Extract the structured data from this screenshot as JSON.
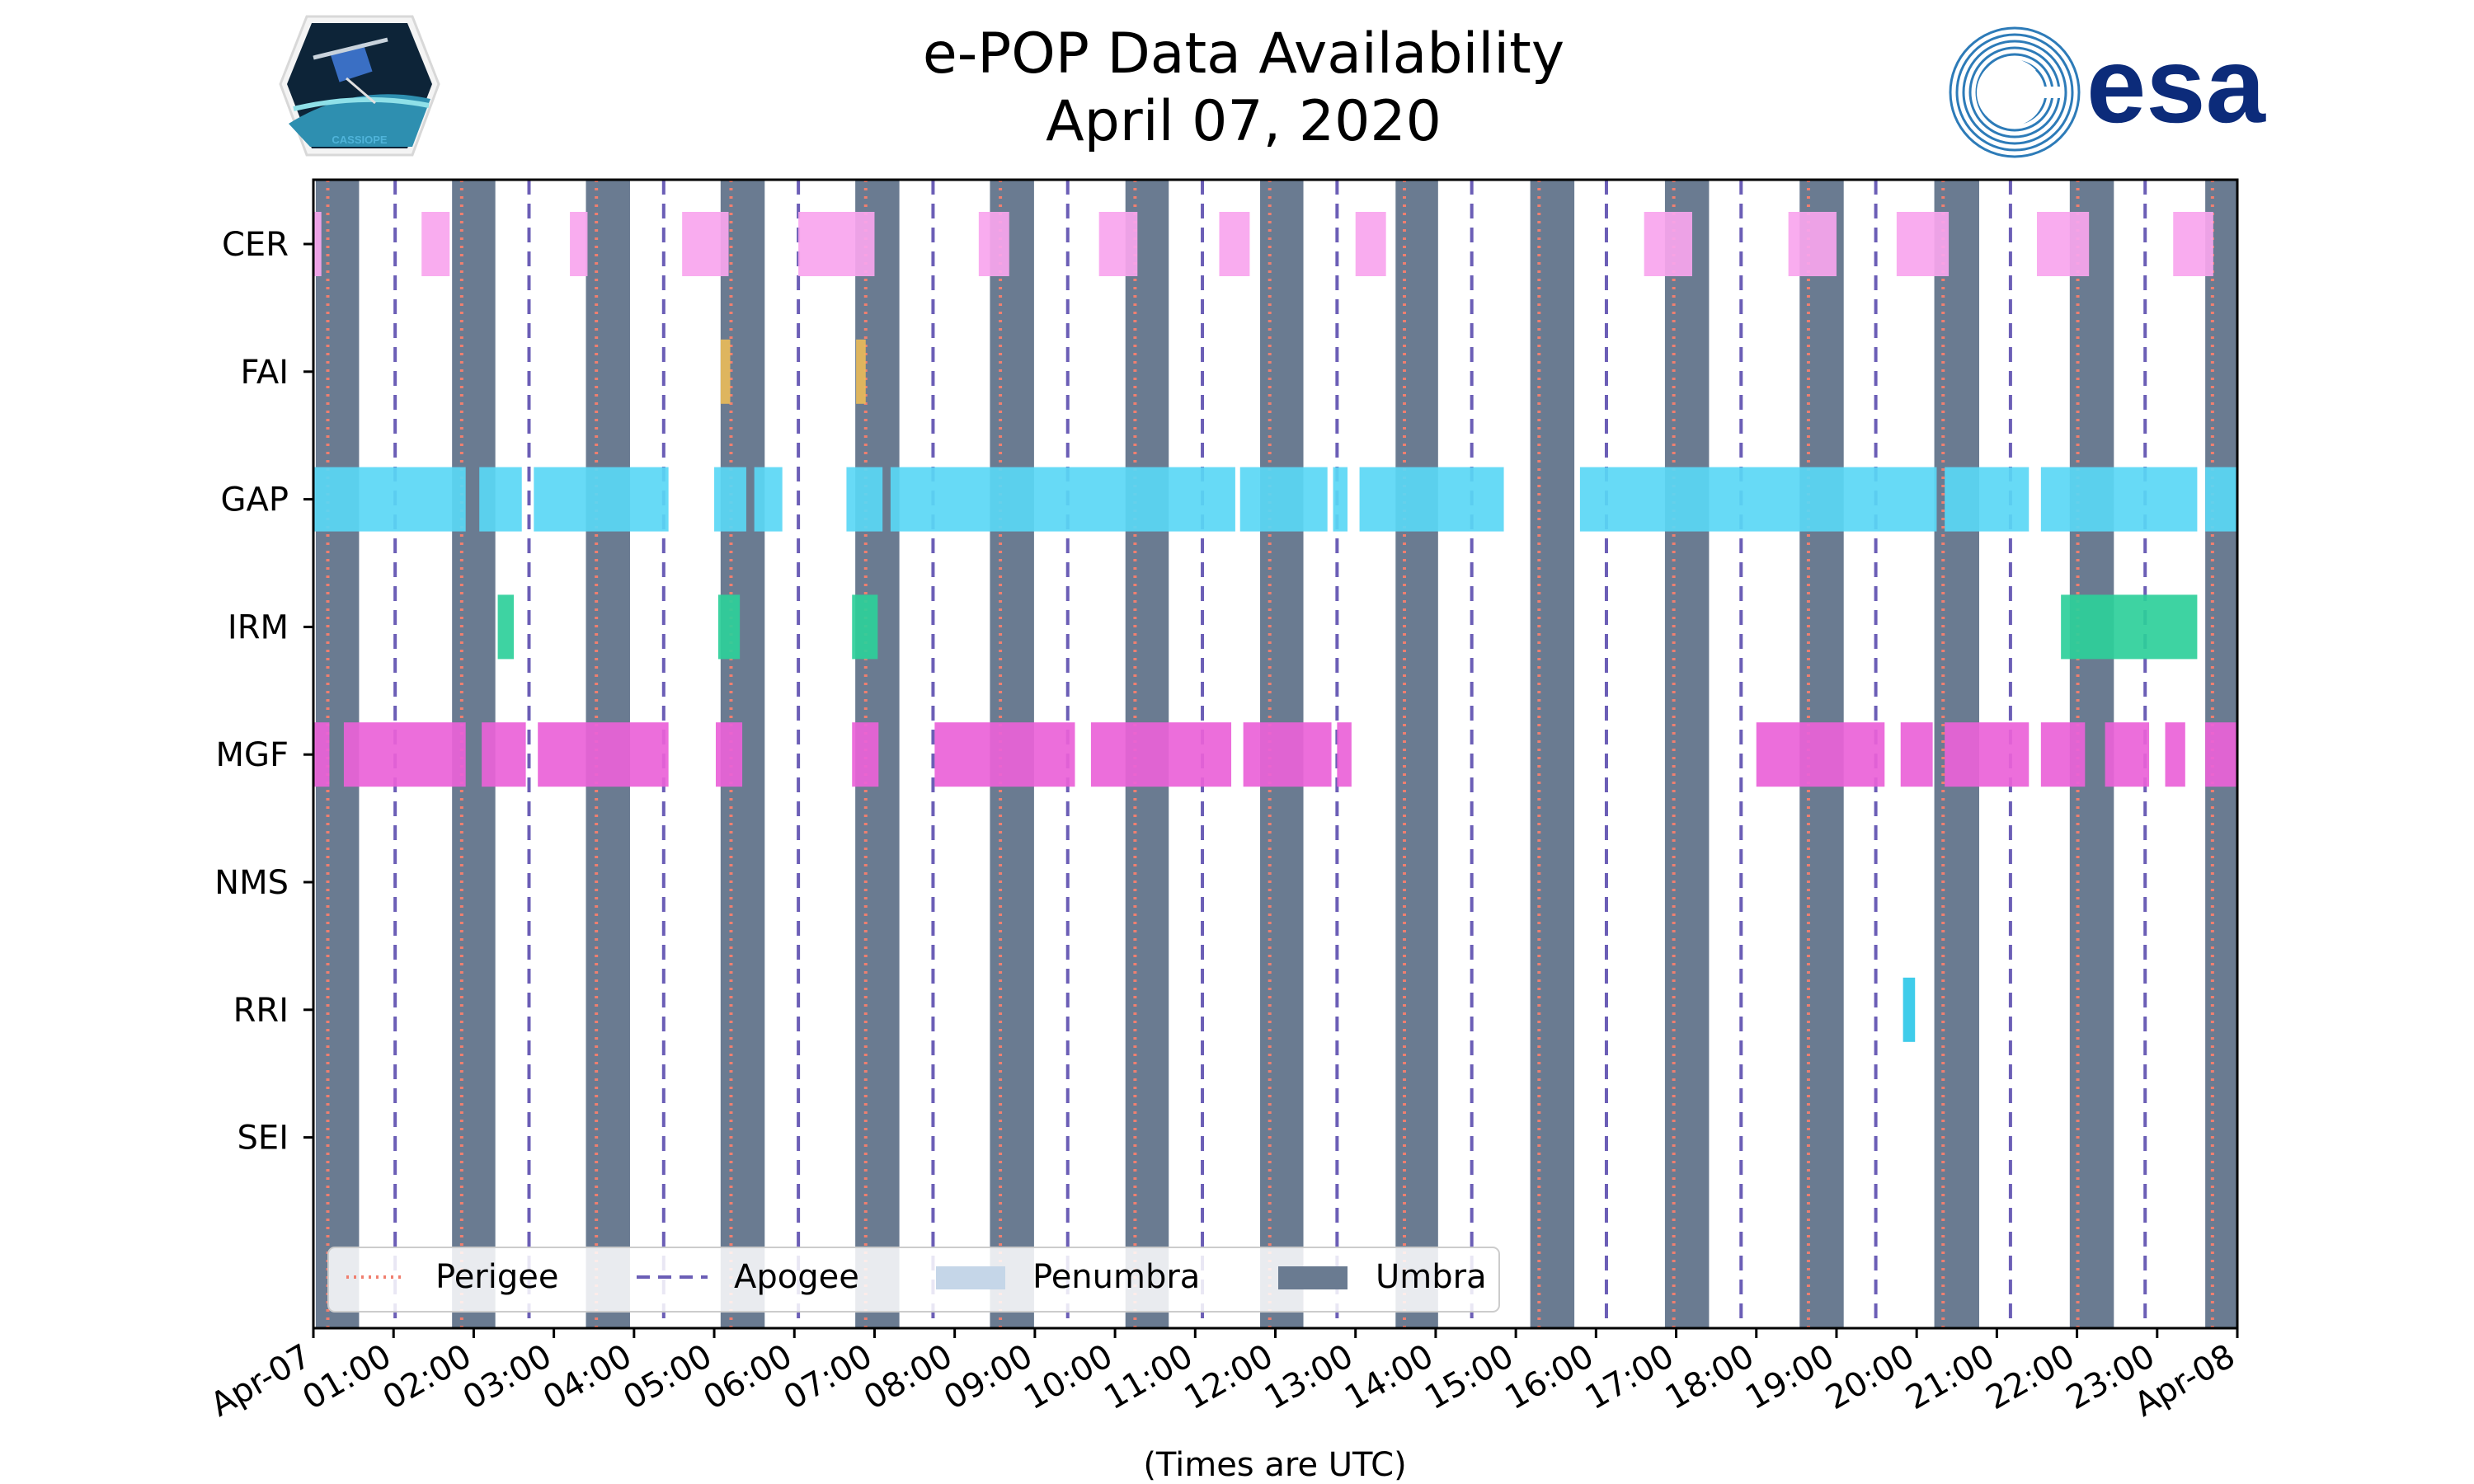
{
  "chart_data": {
    "type": "timeline",
    "title": "e-POP Data Availability",
    "subtitle": "April 07, 2020",
    "xlabel": "(Times are UTC)",
    "xlim_hours": [
      0,
      24
    ],
    "x_tick_labels": [
      "Apr-07",
      "01:00",
      "02:00",
      "03:00",
      "04:00",
      "05:00",
      "06:00",
      "07:00",
      "08:00",
      "09:00",
      "10:00",
      "11:00",
      "12:00",
      "13:00",
      "14:00",
      "15:00",
      "16:00",
      "17:00",
      "18:00",
      "19:00",
      "20:00",
      "21:00",
      "22:00",
      "23:00",
      "Apr-08"
    ],
    "instruments": [
      "CER",
      "FAI",
      "GAP",
      "IRM",
      "MGF",
      "NMS",
      "RRI",
      "SEI"
    ],
    "colors": {
      "CER": "#f9a5ee",
      "FAI": "#e8ba5a",
      "GAP": "#5ad7f5",
      "IRM": "#2ecf9a",
      "MGF": "#ea62d8",
      "RRI": "#2fc8e8",
      "umbra": "#6a7b91",
      "penumbra": "#c5d6e8",
      "perigee": "#f07f6f",
      "apogee": "#6b5eb6"
    },
    "umbra": [
      [
        0.03,
        0.57
      ],
      [
        1.73,
        2.27
      ],
      [
        3.4,
        3.95
      ],
      [
        5.08,
        5.63
      ],
      [
        6.76,
        7.31
      ],
      [
        8.44,
        8.99
      ],
      [
        10.13,
        10.67
      ],
      [
        11.81,
        12.35
      ],
      [
        13.5,
        14.03
      ],
      [
        15.18,
        15.73
      ],
      [
        16.86,
        17.41
      ],
      [
        18.54,
        19.09
      ],
      [
        20.22,
        20.78
      ],
      [
        21.91,
        22.46
      ],
      [
        23.6,
        24.0
      ]
    ],
    "perigee": [
      0.18,
      1.85,
      3.53,
      5.21,
      6.89,
      8.57,
      10.25,
      11.93,
      13.61,
      15.29,
      16.97,
      18.65,
      20.33,
      22.01,
      23.69
    ],
    "apogee": [
      1.02,
      2.69,
      4.37,
      6.05,
      7.73,
      9.41,
      11.09,
      12.77,
      14.45,
      16.13,
      17.81,
      19.49,
      21.17,
      22.85
    ],
    "series": [
      {
        "name": "CER",
        "intervals": [
          [
            0.0,
            0.1
          ],
          [
            1.35,
            1.7
          ],
          [
            3.2,
            3.42
          ],
          [
            4.6,
            5.18
          ],
          [
            6.05,
            7.0
          ],
          [
            8.3,
            8.68
          ],
          [
            9.8,
            10.28
          ],
          [
            11.3,
            11.68
          ],
          [
            13.0,
            13.38
          ],
          [
            16.6,
            17.2
          ],
          [
            18.4,
            19.0
          ],
          [
            19.75,
            20.4
          ],
          [
            21.5,
            22.15
          ],
          [
            23.2,
            23.7
          ]
        ]
      },
      {
        "name": "FAI",
        "intervals": [
          [
            5.08,
            5.2
          ],
          [
            6.77,
            6.89
          ]
        ]
      },
      {
        "name": "GAP",
        "intervals": [
          [
            0.0,
            1.9
          ],
          [
            2.07,
            2.6
          ],
          [
            2.75,
            4.43
          ],
          [
            5.0,
            5.4
          ],
          [
            5.5,
            5.85
          ],
          [
            6.65,
            7.1
          ],
          [
            7.2,
            11.5
          ],
          [
            11.56,
            12.65
          ],
          [
            12.72,
            12.9
          ],
          [
            13.05,
            14.85
          ],
          [
            15.8,
            20.25
          ],
          [
            20.35,
            21.4
          ],
          [
            21.55,
            23.5
          ],
          [
            23.6,
            24.0
          ]
        ]
      },
      {
        "name": "IRM",
        "intervals": [
          [
            2.3,
            2.5
          ],
          [
            5.05,
            5.32
          ],
          [
            6.72,
            7.04
          ],
          [
            21.8,
            23.5
          ]
        ]
      },
      {
        "name": "MGF",
        "intervals": [
          [
            0.0,
            0.2
          ],
          [
            0.38,
            1.9
          ],
          [
            2.1,
            2.65
          ],
          [
            2.8,
            4.43
          ],
          [
            5.02,
            5.35
          ],
          [
            6.72,
            7.05
          ],
          [
            7.75,
            9.5
          ],
          [
            9.7,
            11.45
          ],
          [
            11.6,
            12.7
          ],
          [
            12.77,
            12.95
          ],
          [
            18.0,
            19.6
          ],
          [
            19.8,
            20.2
          ],
          [
            20.35,
            21.4
          ],
          [
            21.55,
            22.1
          ],
          [
            22.35,
            22.9
          ],
          [
            23.1,
            23.35
          ],
          [
            23.6,
            24.0
          ]
        ]
      },
      {
        "name": "NMS",
        "intervals": []
      },
      {
        "name": "RRI",
        "intervals": [
          [
            19.83,
            19.98
          ]
        ]
      },
      {
        "name": "SEI",
        "intervals": []
      }
    ],
    "legend": [
      {
        "label": "Perigee",
        "style": "dotted"
      },
      {
        "label": "Apogee",
        "style": "dashed"
      },
      {
        "label": "Penumbra",
        "style": "patch"
      },
      {
        "label": "Umbra",
        "style": "patch"
      }
    ]
  },
  "logos": {
    "left": "CASSIOPE",
    "right": "esa"
  }
}
